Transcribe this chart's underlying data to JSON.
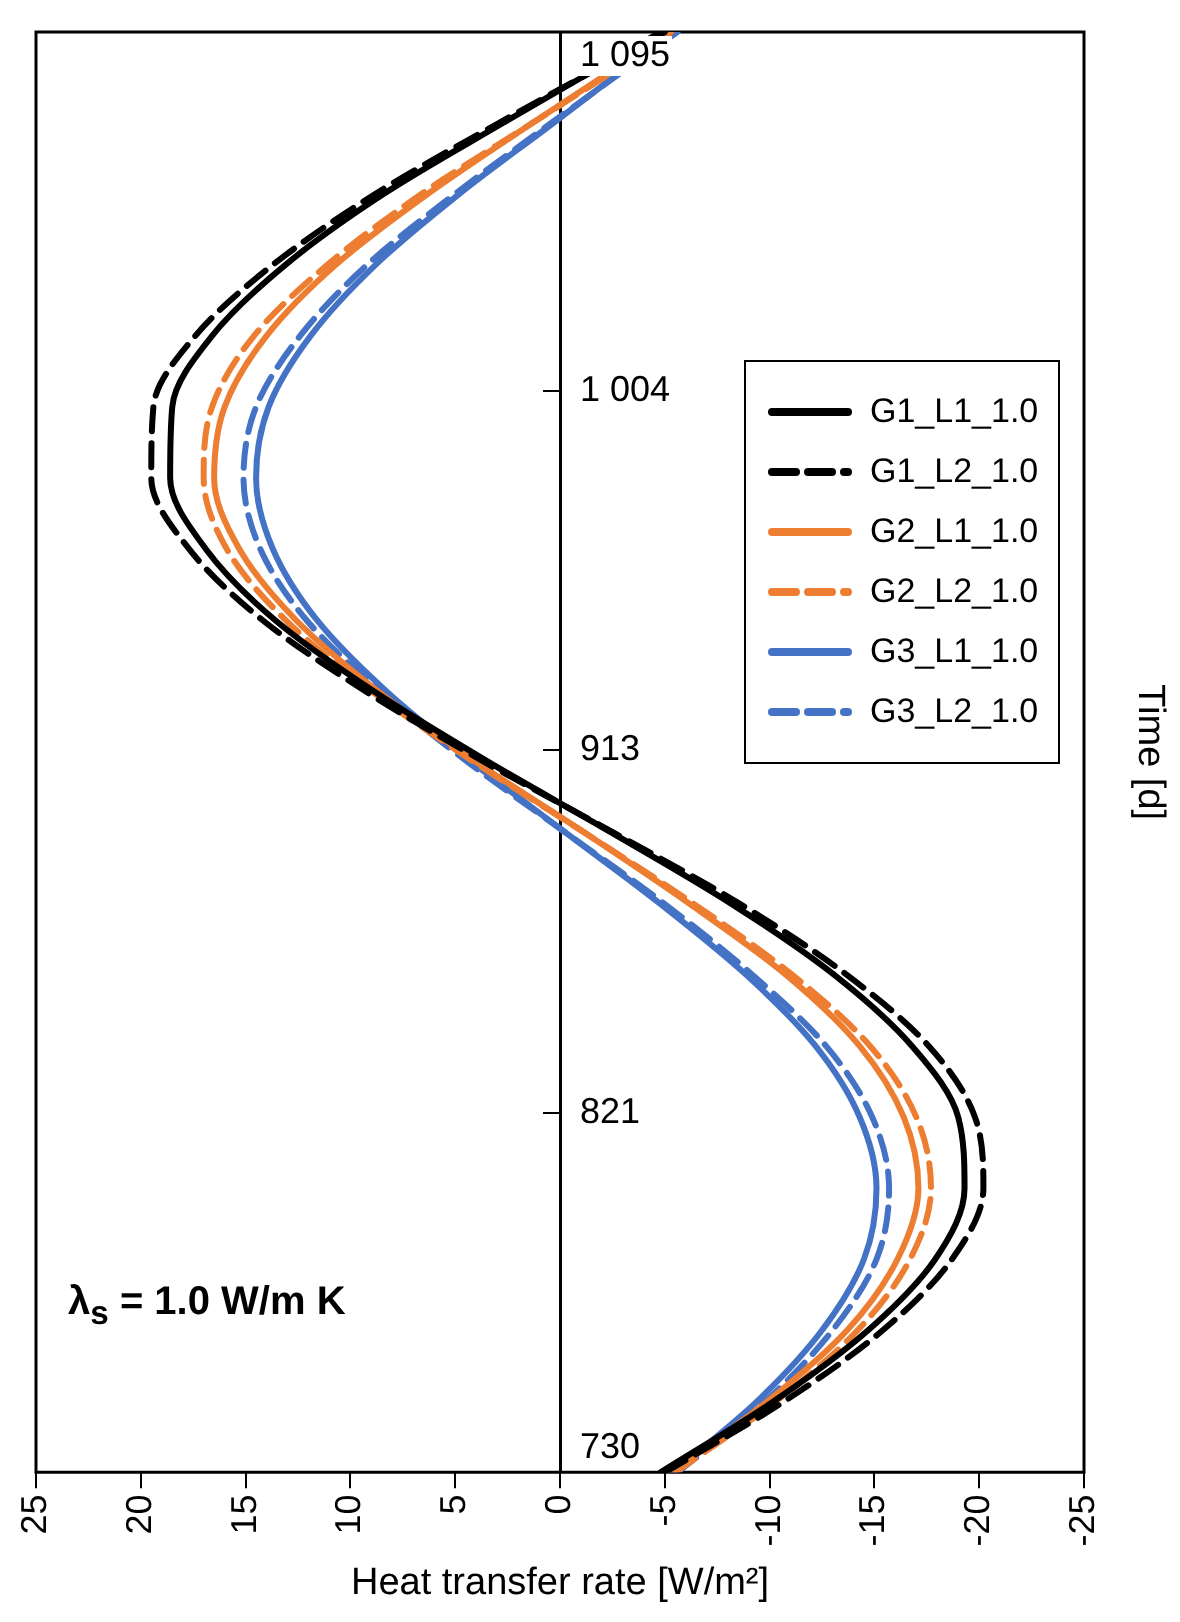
{
  "chart_data": {
    "type": "line",
    "xlabel": "Heat transfer rate [W/m²]",
    "ylabel": "Time [d]",
    "annotations": [
      "λ$_{s}$ = 1.0 W/m K"
    ],
    "ylim": [
      730,
      1095
    ],
    "yticks": [
      730,
      821,
      913,
      {
        "value": 1004,
        "label": "1 004"
      },
      {
        "value": 1095,
        "label": "1 095"
      }
    ],
    "xlim": [
      25,
      -25
    ],
    "xticks": [
      25,
      20,
      15,
      10,
      5,
      0,
      -5,
      -10,
      -15,
      -20,
      -25
    ],
    "grid": false,
    "legend": "right",
    "marker": "none",
    "series": [
      {
        "name": "G1_L1_1.0",
        "color": "#000000",
        "line_style": "solid",
        "x": [
          -4.8,
          -10.2,
          -14.7,
          -17.9,
          -19.3,
          -19.0,
          -16.8,
          -13.1,
          -8.2,
          -2.5,
          3.4,
          8.9,
          13.6,
          16.9,
          18.6,
          18.5,
          16.6,
          13.1,
          8.4,
          2.7,
          -4.8
        ],
        "values": [
          730,
          748,
          766,
          784,
          802,
          820,
          838,
          856,
          874,
          892,
          910,
          928,
          946,
          964,
          982,
          1000,
          1018,
          1036,
          1054,
          1072,
          1095
        ]
      },
      {
        "name": "G1_L2_1.0",
        "color": "#000000",
        "line_style": "dashed",
        "x": [
          -5.0,
          -10.7,
          -15.4,
          -18.7,
          -20.2,
          -19.8,
          -17.6,
          -13.7,
          -8.6,
          -2.6,
          3.6,
          9.3,
          14.2,
          17.7,
          19.5,
          19.4,
          17.4,
          13.7,
          8.8,
          2.9,
          -5.0
        ],
        "values": [
          730,
          748,
          766,
          784,
          802,
          820,
          838,
          856,
          874,
          892,
          910,
          928,
          946,
          964,
          982,
          1000,
          1018,
          1036,
          1054,
          1072,
          1095
        ]
      },
      {
        "name": "G2_L1_1.0",
        "color": "#ed7d31",
        "line_style": "solid",
        "x": [
          -5.3,
          -9.9,
          -13.7,
          -16.1,
          -17.1,
          -16.4,
          -14.3,
          -10.8,
          -6.2,
          -1.2,
          4.0,
          8.7,
          12.6,
          15.3,
          16.5,
          16.0,
          14.0,
          10.7,
          6.3,
          1.3,
          -5.3
        ],
        "values": [
          730,
          748,
          766,
          784,
          802,
          820,
          838,
          856,
          874,
          892,
          910,
          928,
          946,
          964,
          982,
          1000,
          1018,
          1036,
          1054,
          1072,
          1095
        ]
      },
      {
        "name": "G2_L2_1.0",
        "color": "#ed7d31",
        "line_style": "dashed",
        "x": [
          -5.5,
          -10.3,
          -14.2,
          -16.7,
          -17.7,
          -17.0,
          -14.8,
          -11.1,
          -6.4,
          -1.2,
          4.1,
          9.0,
          13.1,
          15.9,
          17.0,
          16.6,
          14.6,
          11.1,
          6.6,
          1.3,
          -5.5
        ],
        "values": [
          730,
          748,
          766,
          784,
          802,
          820,
          838,
          856,
          874,
          892,
          910,
          928,
          946,
          964,
          982,
          1000,
          1018,
          1036,
          1054,
          1072,
          1095
        ]
      },
      {
        "name": "G3_L1_1.0",
        "color": "#4472c4",
        "line_style": "solid",
        "x": [
          -5.4,
          -9.4,
          -12.5,
          -14.5,
          -15.1,
          -14.3,
          -12.2,
          -8.9,
          -4.8,
          -0.3,
          4.2,
          8.3,
          11.6,
          13.7,
          14.5,
          13.9,
          11.9,
          8.8,
          4.8,
          0.3,
          -5.4
        ],
        "values": [
          730,
          748,
          766,
          784,
          802,
          820,
          838,
          856,
          874,
          892,
          910,
          928,
          946,
          964,
          982,
          1000,
          1018,
          1036,
          1054,
          1072,
          1095
        ]
      },
      {
        "name": "G3_L2_1.0",
        "color": "#4472c4",
        "line_style": "dashed",
        "x": [
          -5.6,
          -9.8,
          -13.0,
          -15.1,
          -15.7,
          -14.9,
          -12.7,
          -9.2,
          -5.0,
          -0.3,
          4.4,
          8.6,
          12.1,
          14.3,
          15.1,
          14.5,
          12.4,
          9.2,
          5.0,
          0.4,
          -5.6
        ],
        "values": [
          730,
          748,
          766,
          784,
          802,
          820,
          838,
          856,
          874,
          892,
          910,
          928,
          946,
          964,
          982,
          1000,
          1018,
          1036,
          1054,
          1072,
          1095
        ]
      }
    ]
  }
}
